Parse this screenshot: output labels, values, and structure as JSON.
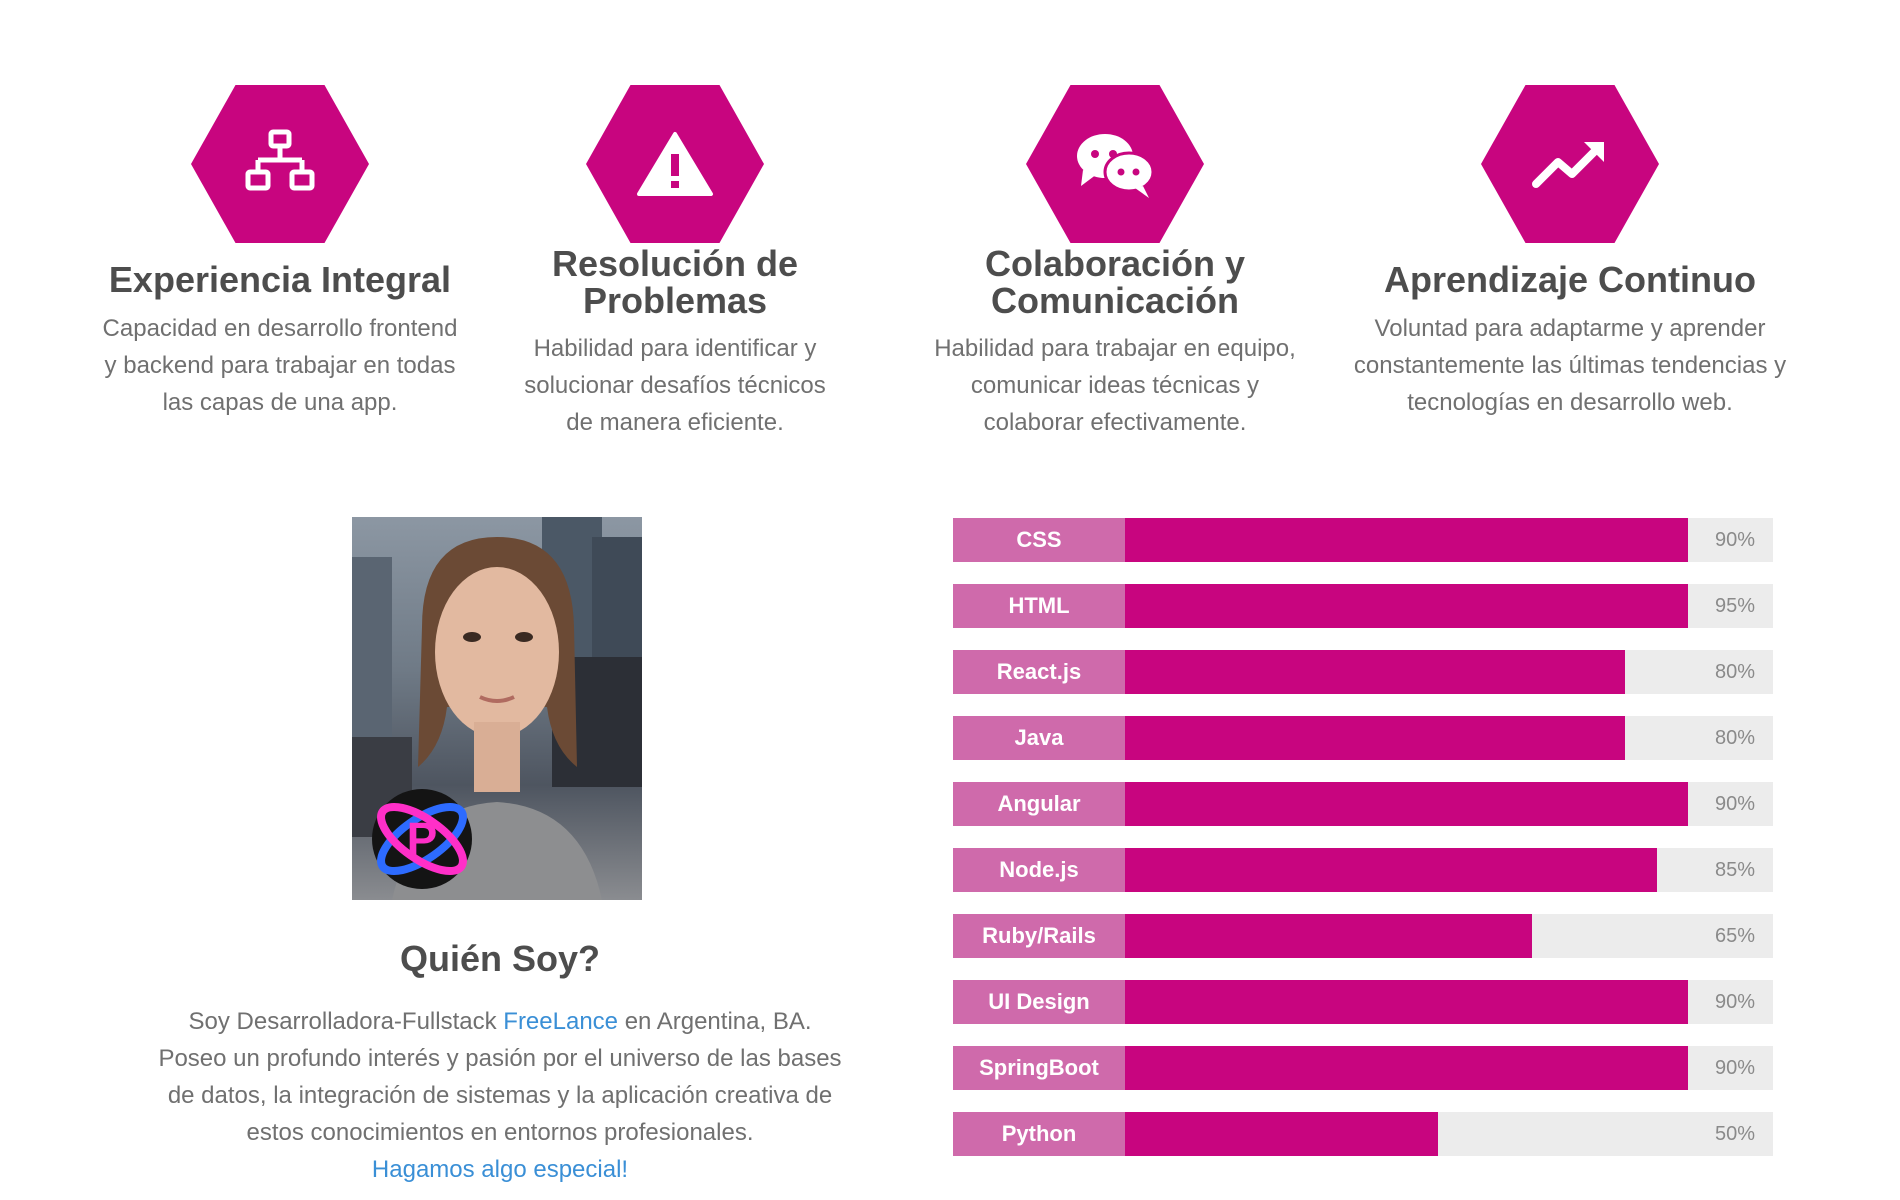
{
  "features": [
    {
      "icon": "sitemap-icon",
      "title": "Experiencia Integral",
      "description": [
        "Capacidad en desarrollo frontend",
        "y backend para trabajar en todas",
        "las capas de una app."
      ]
    },
    {
      "icon": "warning-icon",
      "title": "Resolución de Problemas",
      "description": [
        "Habilidad para identificar y",
        "solucionar desafíos técnicos",
        "de manera eficiente."
      ]
    },
    {
      "icon": "chat-icon",
      "title": "Colaboración y Comunicación",
      "description": [
        "Habilidad para trabajar en equipo,",
        "comunicar ideas técnicas y",
        "colaborar efectivamente."
      ]
    },
    {
      "icon": "trending-up-icon",
      "title": "Aprendizaje Continuo",
      "description": [
        "Voluntad para adaptarme y aprender",
        "constantemente las últimas tendencias y",
        "tecnologías en desarrollo web."
      ]
    }
  ],
  "about": {
    "title": "Quién Soy?",
    "line1_prefix": "Soy Desarrolladora-Fullstack ",
    "line1_link": "FreeLance",
    "line1_suffix": " en Argentina, BA.",
    "line2": "Poseo un profundo interés y pasión por el universo de las bases",
    "line3": "de datos, la integración de sistemas y la aplicación creativa de",
    "line4": "estos conocimientos en entornos profesionales.",
    "cta": "Hagamos algo especial!"
  },
  "colors": {
    "accent": "#c8057f",
    "label_bg": "#cf6aab",
    "track": "#ececec"
  },
  "skills": [
    {
      "name": "CSS",
      "percent": 90,
      "label": "90%"
    },
    {
      "name": "HTML",
      "percent": 95,
      "label": "95%"
    },
    {
      "name": "React.js",
      "percent": 80,
      "label": "80%"
    },
    {
      "name": "Java",
      "percent": 80,
      "label": "80%"
    },
    {
      "name": "Angular",
      "percent": 90,
      "label": "90%"
    },
    {
      "name": "Node.js",
      "percent": 85,
      "label": "85%"
    },
    {
      "name": "Ruby/Rails",
      "percent": 65,
      "label": "65%"
    },
    {
      "name": "UI Design",
      "percent": 90,
      "label": "90%"
    },
    {
      "name": "SpringBoot",
      "percent": 90,
      "label": "90%"
    },
    {
      "name": "Python",
      "percent": 50,
      "label": "50%"
    }
  ]
}
